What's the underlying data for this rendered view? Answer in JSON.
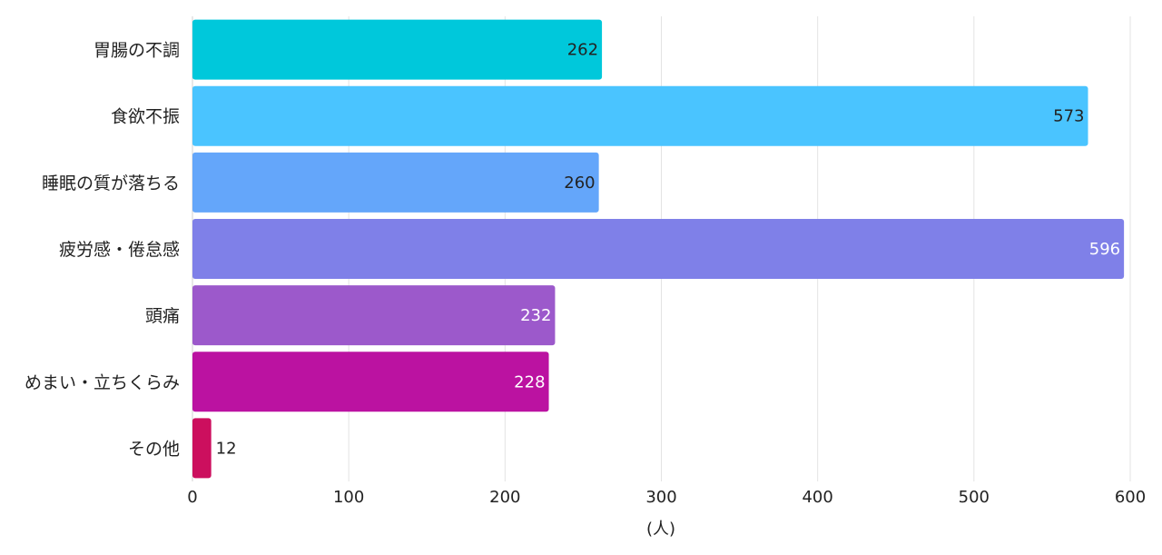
{
  "chart_data": {
    "type": "bar",
    "orientation": "horizontal",
    "title": "",
    "xlabel": "(人)",
    "ylabel": "",
    "xlim": [
      0,
      600
    ],
    "xticks": [
      0,
      100,
      200,
      300,
      400,
      500,
      600
    ],
    "grid": true,
    "legend": "none",
    "categories": [
      "胃腸の不調",
      "食欲不振",
      "睡眠の質が落ちる",
      "疲労感・倦怠感",
      "頭痛",
      "めまい・立ちくらみ",
      "その他"
    ],
    "values": [
      262,
      573,
      260,
      596,
      232,
      228,
      12
    ],
    "colors": [
      "#00c8db",
      "#4ac4ff",
      "#64a6fa",
      "#7f80e8",
      "#9c59cb",
      "#bb12a1",
      "#cc0f5e"
    ],
    "label_colors": [
      "#222222",
      "#222222",
      "#222222",
      "#ffffff",
      "#ffffff",
      "#ffffff",
      "#222222"
    ]
  }
}
